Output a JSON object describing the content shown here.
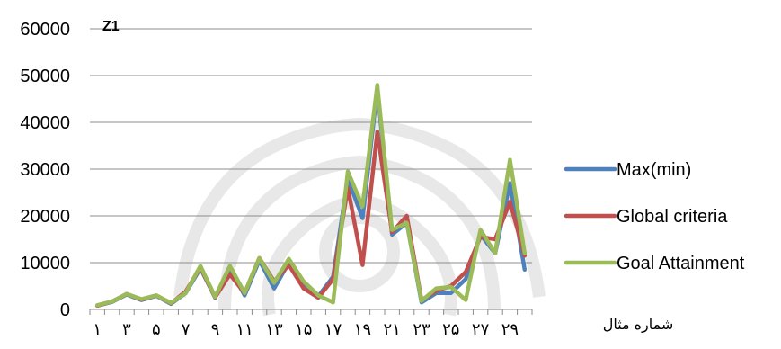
{
  "chart_data": {
    "type": "line",
    "title": "Z1",
    "xlabel": "شماره مثال",
    "ylabel": "",
    "ylim": [
      0,
      60000
    ],
    "yticks": [
      0,
      10000,
      20000,
      30000,
      40000,
      50000,
      60000
    ],
    "x": [
      1,
      2,
      3,
      4,
      5,
      6,
      7,
      8,
      9,
      10,
      11,
      12,
      13,
      14,
      15,
      16,
      17,
      18,
      19,
      20,
      21,
      22,
      23,
      24,
      25,
      26,
      27,
      28,
      29,
      30
    ],
    "xtick_labels": [
      "١",
      "٣",
      "۵",
      "٧",
      "٩",
      "١١",
      "١٣",
      "١۵",
      "١٧",
      "١٩",
      "٢١",
      "٢٣",
      "٢۵",
      "٢٧",
      "٢٩"
    ],
    "grid": "horizontal",
    "legend_position": "right",
    "series": [
      {
        "name": "Max(min)",
        "color": "#4f81bd",
        "values": [
          800,
          1600,
          3200,
          2000,
          2900,
          1200,
          3500,
          8800,
          2500,
          8800,
          3000,
          10500,
          4500,
          10000,
          5500,
          2800,
          7000,
          28000,
          19500,
          47000,
          16000,
          18500,
          1500,
          3500,
          3500,
          6500,
          16000,
          12000,
          27000,
          8500
        ]
      },
      {
        "name": "Global criteria",
        "color": "#c0504d",
        "values": [
          800,
          1700,
          3300,
          2100,
          3000,
          1300,
          3800,
          9000,
          2600,
          7500,
          3500,
          11000,
          6000,
          9500,
          4500,
          2500,
          6500,
          26000,
          9500,
          38000,
          16500,
          20000,
          2000,
          4000,
          5000,
          8000,
          15500,
          15000,
          23000,
          11500
        ]
      },
      {
        "name": "Goal Attainment",
        "color": "#9bbb59",
        "values": [
          900,
          1700,
          3300,
          2200,
          3000,
          1400,
          3500,
          9300,
          2700,
          9300,
          3500,
          11000,
          5700,
          10800,
          6000,
          3000,
          1500,
          29500,
          22000,
          48000,
          17000,
          18500,
          1800,
          4500,
          4800,
          2000,
          17000,
          12000,
          32000,
          12000
        ]
      }
    ]
  }
}
